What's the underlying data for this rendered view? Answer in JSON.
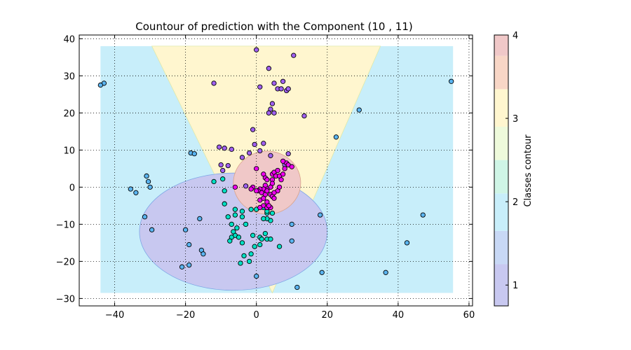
{
  "chart_data": {
    "type": "scatter",
    "title": "Countour of prediction with the Component (10 , 11)",
    "xlabel": "",
    "ylabel": "",
    "xlim": [
      -50,
      61
    ],
    "ylim": [
      -32,
      41
    ],
    "x_ticks": [
      -40,
      -20,
      0,
      20,
      40,
      60
    ],
    "y_ticks": [
      -30,
      -20,
      -10,
      0,
      10,
      20,
      30,
      40
    ],
    "x_tick_labels": [
      "−40",
      "−20",
      "0",
      "20",
      "40",
      "60"
    ],
    "y_tick_labels": [
      "−30",
      "−20",
      "−10",
      "0",
      "10",
      "20",
      "30",
      "40"
    ],
    "grid": true,
    "colorbar": {
      "label": "Classes contour",
      "ticks": [
        1,
        2,
        3,
        4
      ],
      "tick_labels": [
        "1",
        "2",
        "3",
        "4"
      ],
      "range": [
        0.75,
        4.0
      ],
      "bands": [
        {
          "from": 0.75,
          "to": 1.25,
          "color": "#c8c8f0"
        },
        {
          "from": 1.25,
          "to": 1.65,
          "color": "#c8d8f5"
        },
        {
          "from": 1.65,
          "to": 2.1,
          "color": "#c8eefa"
        },
        {
          "from": 2.1,
          "to": 2.5,
          "color": "#cff5e6"
        },
        {
          "from": 2.5,
          "to": 2.9,
          "color": "#eefadb"
        },
        {
          "from": 2.9,
          "to": 3.35,
          "color": "#fff6cf"
        },
        {
          "from": 3.35,
          "to": 3.75,
          "color": "#f8d6c6"
        },
        {
          "from": 3.75,
          "to": 4.0,
          "color": "#f0c8c8"
        }
      ]
    },
    "contour_regions": {
      "extent_x": [
        -44,
        55.5
      ],
      "extent_y": [
        -28.5,
        38
      ],
      "background": {
        "class": 2,
        "color": "#c8eefa"
      },
      "wedge": {
        "class": 3,
        "color": "#fff6cf",
        "top_x": [
          -29.5,
          35
        ],
        "apex": [
          4.5,
          -28.5
        ]
      },
      "ellipse": {
        "class": 1,
        "color": "#c8c8f0",
        "stroke": "#7fa8e6",
        "center": [
          -6.5,
          -12
        ],
        "radius": [
          26.5,
          15.8
        ]
      },
      "ellipse_top": {
        "class": 4,
        "color": "#f0c8c8",
        "stroke": "#d9a38a",
        "center": [
          3,
          1.2
        ],
        "radius": [
          9.5,
          8.5
        ]
      }
    },
    "series": [
      {
        "color": "#00e0c4",
        "points": [
          [
            -9.5,
            2.2
          ],
          [
            -12,
            1.5
          ],
          [
            -9,
            -1
          ],
          [
            -9,
            -4.5
          ],
          [
            -8,
            -8
          ],
          [
            -6,
            -6
          ],
          [
            -6,
            -7.5
          ],
          [
            -4,
            -6.5
          ],
          [
            -1.5,
            -6
          ],
          [
            0,
            -6
          ],
          [
            -7,
            -10
          ],
          [
            -5.5,
            -11
          ],
          [
            -4,
            -8
          ],
          [
            -3,
            -10
          ],
          [
            -6,
            -13
          ],
          [
            -5,
            -13.5
          ],
          [
            -7,
            -13.5
          ],
          [
            -4,
            -15
          ],
          [
            -1,
            -13
          ],
          [
            1,
            -13.5
          ],
          [
            2.5,
            -12.5
          ],
          [
            1.5,
            -14
          ],
          [
            3,
            -14
          ],
          [
            4,
            -14
          ],
          [
            1,
            -15.5
          ],
          [
            -0.5,
            -16
          ],
          [
            -3.5,
            -18.5
          ],
          [
            -1.5,
            -18
          ],
          [
            -2,
            -20
          ],
          [
            -4.5,
            -20.5
          ],
          [
            6.5,
            -16
          ],
          [
            4,
            -9
          ],
          [
            3,
            -8.5
          ],
          [
            2,
            -8.5
          ],
          [
            3,
            -7
          ],
          [
            4.5,
            -7
          ],
          [
            2,
            -5.5
          ],
          [
            3,
            -6.5
          ],
          [
            -6.5,
            -12
          ],
          [
            -7.5,
            -14.5
          ]
        ]
      },
      {
        "color": "#5ab4f0",
        "points": [
          [
            -43,
            28
          ],
          [
            -44,
            27.5
          ],
          [
            -18.5,
            9.2
          ],
          [
            -17.5,
            9
          ],
          [
            -31,
            3
          ],
          [
            -30.5,
            1.5
          ],
          [
            -30,
            0
          ],
          [
            -35.5,
            -0.5
          ],
          [
            -34,
            -1.5
          ],
          [
            -31.5,
            -8
          ],
          [
            -29.5,
            -11.5
          ],
          [
            -20,
            -11.5
          ],
          [
            -19,
            -15.5
          ],
          [
            -15.5,
            -17
          ],
          [
            -15,
            -18
          ],
          [
            -16,
            -8.5
          ],
          [
            -21,
            -21.5
          ],
          [
            -19,
            -21
          ],
          [
            0,
            -24
          ],
          [
            11.5,
            -27
          ],
          [
            18,
            -7.5
          ],
          [
            18.5,
            -23
          ],
          [
            22.5,
            13.5
          ],
          [
            29,
            20.8
          ],
          [
            36.5,
            -23
          ],
          [
            42.5,
            -15
          ],
          [
            47,
            -7.5
          ],
          [
            55,
            28.5
          ],
          [
            10,
            -10
          ],
          [
            10,
            -14.5
          ]
        ]
      },
      {
        "color": "#a060f0",
        "points": [
          [
            0,
            37
          ],
          [
            10.5,
            35.5
          ],
          [
            3.5,
            32
          ],
          [
            -12,
            28
          ],
          [
            1,
            27
          ],
          [
            5,
            28
          ],
          [
            6,
            26.5
          ],
          [
            7.5,
            28.5
          ],
          [
            7,
            26.5
          ],
          [
            8.5,
            26
          ],
          [
            9,
            26.5
          ],
          [
            4.5,
            22.5
          ],
          [
            4,
            21
          ],
          [
            3.5,
            20
          ],
          [
            5,
            20
          ],
          [
            13.5,
            19.2
          ],
          [
            -1,
            15.5
          ],
          [
            -0.5,
            11.5
          ],
          [
            2,
            11.8
          ],
          [
            -10.5,
            10.8
          ],
          [
            -9,
            10.5
          ],
          [
            -7,
            10.2
          ],
          [
            -2,
            9.2
          ],
          [
            1,
            9.8
          ],
          [
            -10,
            6
          ],
          [
            -9.5,
            4.5
          ],
          [
            -8,
            5.8
          ],
          [
            -4,
            8
          ],
          [
            4,
            8.5
          ],
          [
            9,
            9
          ],
          [
            8,
            6
          ],
          [
            -3,
            0.3
          ]
        ]
      },
      {
        "color": "#ee00ee",
        "points": [
          [
            0,
            5
          ],
          [
            2,
            3.5
          ],
          [
            2.5,
            2.5
          ],
          [
            3,
            2
          ],
          [
            4.5,
            3.5
          ],
          [
            5,
            4
          ],
          [
            6,
            4.5
          ],
          [
            5.5,
            3
          ],
          [
            6.5,
            3
          ],
          [
            7,
            2
          ],
          [
            7.5,
            3.5
          ],
          [
            8,
            5
          ],
          [
            8.5,
            6.5
          ],
          [
            9,
            6
          ],
          [
            10,
            5.5
          ],
          [
            7.5,
            7
          ],
          [
            4.5,
            2
          ],
          [
            4.5,
            1
          ],
          [
            4,
            0
          ],
          [
            3,
            -0.5
          ],
          [
            2.5,
            0.5
          ],
          [
            2,
            -0.5
          ],
          [
            1,
            -0.5
          ],
          [
            0.5,
            -1
          ],
          [
            1.5,
            -1.5
          ],
          [
            2.5,
            -2
          ],
          [
            3,
            -1
          ],
          [
            4,
            -2
          ],
          [
            4.5,
            -2.5
          ],
          [
            5,
            -3
          ],
          [
            6,
            -1
          ],
          [
            6.5,
            0
          ],
          [
            5,
            -1.5
          ],
          [
            1,
            -3.5
          ],
          [
            2,
            -3
          ],
          [
            3,
            -4
          ],
          [
            2,
            -5
          ],
          [
            3,
            -5.5
          ],
          [
            4,
            -5.5
          ],
          [
            3.5,
            -5
          ],
          [
            1,
            -5.5
          ],
          [
            -1,
            0
          ],
          [
            -1.5,
            -0.5
          ],
          [
            0,
            -1
          ],
          [
            -6,
            0
          ]
        ]
      }
    ]
  }
}
